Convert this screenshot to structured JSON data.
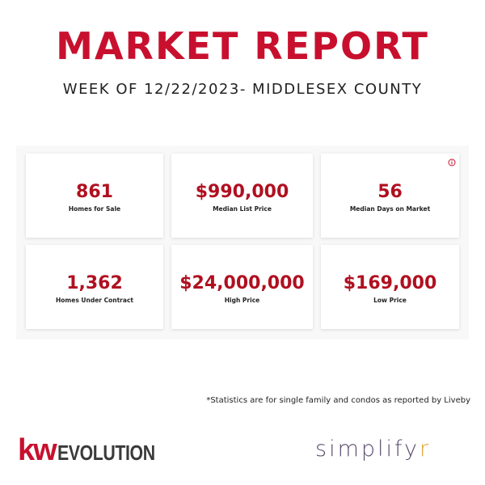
{
  "header": {
    "title": "MARKET REPORT",
    "subtitle": "WEEK OF 12/22/2023- MIDDLESEX COUNTY"
  },
  "stats": [
    {
      "value": "861",
      "label": "Homes for Sale"
    },
    {
      "value": "$990,000",
      "label": "Median List Price"
    },
    {
      "value": "56",
      "label": "Median Days on Market"
    },
    {
      "value": "1,362",
      "label": "Homes Under Contract"
    },
    {
      "value": "$24,000,000",
      "label": "High Price"
    },
    {
      "value": "$169,000",
      "label": "Low Price"
    }
  ],
  "footnote": "*Statistics are for single family and condos as reported by Liveby",
  "logos": {
    "left": {
      "mark": "kw",
      "text": "EVOLUTION"
    },
    "right": {
      "text": "simplify",
      "mark": "r"
    }
  }
}
